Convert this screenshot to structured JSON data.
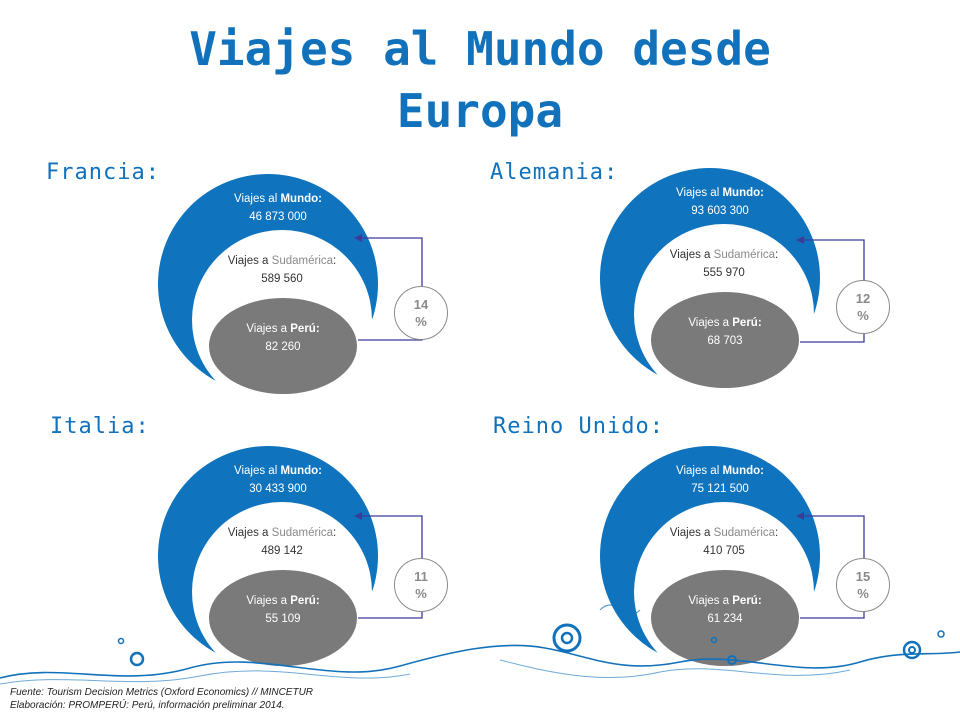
{
  "title": {
    "line1": "Viajes al Mundo desde",
    "line2": "Europa"
  },
  "panels": [
    {
      "country": "Francia:",
      "mundo_label": "Viajes al ",
      "mundo_bold": "Mundo:",
      "mundo_value": "46 873 000",
      "sud_label": "Viajes a ",
      "sud_word": "Sudamérica",
      "sud_colon": ":",
      "sud_value": "589 560",
      "peru_label": "Viajes a ",
      "peru_bold": "Perú:",
      "peru_value": "82 260",
      "pct_number": "14",
      "pct_sign": "%"
    },
    {
      "country": "Alemania:",
      "mundo_label": "Viajes al ",
      "mundo_bold": "Mundo:",
      "mundo_value": "93 603 300",
      "sud_label": "Viajes a ",
      "sud_word": "Sudamérica",
      "sud_colon": ":",
      "sud_value": "555 970",
      "peru_label": "Viajes a ",
      "peru_bold": "Perú:",
      "peru_value": "68 703",
      "pct_number": "12",
      "pct_sign": "%"
    },
    {
      "country": "Italia:",
      "mundo_label": "Viajes al ",
      "mundo_bold": "Mundo:",
      "mundo_value": "30 433 900",
      "sud_label": "Viajes a ",
      "sud_word": "Sudamérica",
      "sud_colon": ":",
      "sud_value": "489 142",
      "peru_label": "Viajes a ",
      "peru_bold": "Perú:",
      "peru_value": "55 109",
      "pct_number": "11",
      "pct_sign": "%"
    },
    {
      "country": "Reino Unido:",
      "mundo_label": "Viajes al ",
      "mundo_bold": "Mundo:",
      "mundo_value": "75 121 500",
      "sud_label": "Viajes a ",
      "sud_word": "Sudamérica",
      "sud_colon": ":",
      "sud_value": "410 705",
      "peru_label": "Viajes a ",
      "peru_bold": "Perú:",
      "peru_value": "61 234",
      "pct_number": "15",
      "pct_sign": "%"
    }
  ],
  "footer": {
    "source": "Fuente: Tourism Decision Metrics (Oxford Economics) // MINCETUR",
    "credit": "Elaboración: PROMPERÚ: Perú, información preliminar 2014."
  },
  "colors": {
    "accent": "#1172bb",
    "circle": "#0f73bd",
    "peru": "#7a7a7a",
    "connector": "#3b3b9a"
  }
}
